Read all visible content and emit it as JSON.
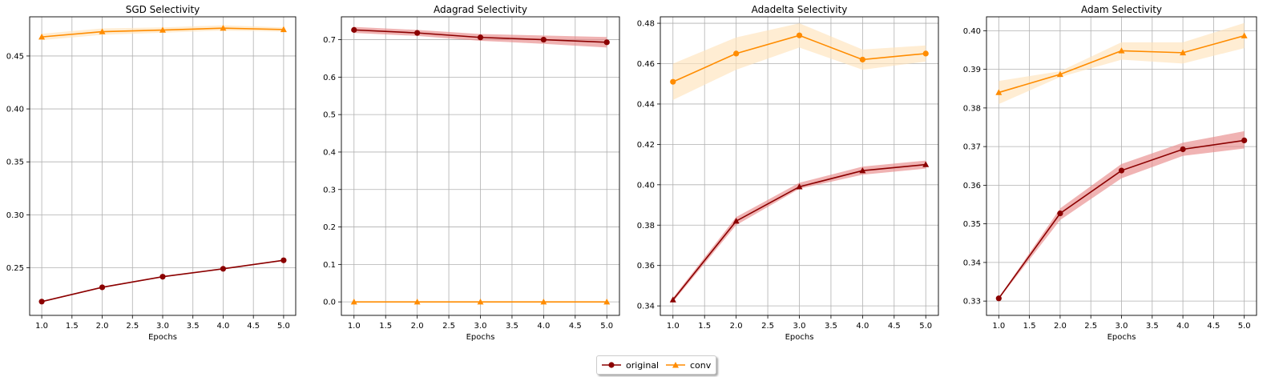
{
  "legend": {
    "entries": [
      {
        "label": "original",
        "color": "#8b0000",
        "marker": "circle"
      },
      {
        "label": "conv",
        "color": "#ff8c00",
        "marker": "triangle"
      }
    ],
    "placement": "bottom-center"
  },
  "chart_data": [
    {
      "type": "line",
      "title": "SGD Selectivity",
      "xlabel": "Epochs",
      "ylabel": "",
      "x": [
        1,
        2,
        3,
        4,
        5
      ],
      "xlim": [
        0.8,
        5.2
      ],
      "ylim": [
        0.205,
        0.487
      ],
      "xticks": [
        "1.0",
        "1.5",
        "2.0",
        "2.5",
        "3.0",
        "3.5",
        "4.0",
        "4.5",
        "5.0"
      ],
      "yticks": [
        "0.25",
        "0.30",
        "0.35",
        "0.40",
        "0.45"
      ],
      "grid": true,
      "series": [
        {
          "name": "original",
          "color": "#8b0000",
          "band_color": "#e88b8b",
          "marker": "circle",
          "values": [
            0.218,
            0.2315,
            0.2415,
            0.249,
            0.257
          ],
          "lower": [
            0.2175,
            0.231,
            0.241,
            0.2485,
            0.2565
          ],
          "upper": [
            0.2185,
            0.232,
            0.242,
            0.2495,
            0.2575
          ]
        },
        {
          "name": "conv",
          "color": "#ff8c00",
          "band_color": "#ffe4bc",
          "marker": "triangle",
          "values": [
            0.468,
            0.473,
            0.4745,
            0.4763,
            0.475
          ],
          "lower": [
            0.465,
            0.47,
            0.472,
            0.474,
            0.473
          ],
          "upper": [
            0.471,
            0.476,
            0.477,
            0.479,
            0.477
          ]
        }
      ]
    },
    {
      "type": "line",
      "title": "Adagrad Selectivity",
      "xlabel": "Epochs",
      "ylabel": "",
      "x": [
        1,
        2,
        3,
        4,
        5
      ],
      "xlim": [
        0.8,
        5.2
      ],
      "ylim": [
        -0.036,
        0.761
      ],
      "xticks": [
        "1.0",
        "1.5",
        "2.0",
        "2.5",
        "3.0",
        "3.5",
        "4.0",
        "4.5",
        "5.0"
      ],
      "yticks": [
        "0.0",
        "0.1",
        "0.2",
        "0.3",
        "0.4",
        "0.5",
        "0.6",
        "0.7"
      ],
      "grid": true,
      "series": [
        {
          "name": "original",
          "color": "#8b0000",
          "band_color": "#e88b8b",
          "marker": "circle",
          "values": [
            0.726,
            0.718,
            0.706,
            0.7,
            0.693
          ],
          "lower": [
            0.718,
            0.71,
            0.697,
            0.689,
            0.679
          ],
          "upper": [
            0.734,
            0.726,
            0.715,
            0.711,
            0.707
          ]
        },
        {
          "name": "conv",
          "color": "#ff8c00",
          "band_color": "#ffe4bc",
          "marker": "triangle",
          "values": [
            0.0,
            0.0,
            0.0,
            0.0,
            0.0
          ],
          "lower": [
            0.0,
            0.0,
            0.0,
            0.0,
            0.0
          ],
          "upper": [
            0.0,
            0.0,
            0.0,
            0.0,
            0.0
          ]
        }
      ]
    },
    {
      "type": "line",
      "title": "Adadelta Selectivity",
      "xlabel": "Epochs",
      "ylabel": "",
      "x": [
        1,
        2,
        3,
        4,
        5
      ],
      "xlim": [
        0.8,
        5.2
      ],
      "ylim": [
        0.3353,
        0.4832
      ],
      "xticks": [
        "1.0",
        "1.5",
        "2.0",
        "2.5",
        "3.0",
        "3.5",
        "4.0",
        "4.5",
        "5.0"
      ],
      "yticks": [
        "0.34",
        "0.36",
        "0.38",
        "0.40",
        "0.42",
        "0.44",
        "0.46",
        "0.48"
      ],
      "grid": true,
      "series": [
        {
          "name": "original",
          "color": "#8b0000",
          "band_color": "#e88b8b",
          "marker": "triangle",
          "values": [
            0.343,
            0.382,
            0.399,
            0.407,
            0.41
          ],
          "lower": [
            0.342,
            0.38,
            0.398,
            0.405,
            0.408
          ],
          "upper": [
            0.344,
            0.384,
            0.401,
            0.409,
            0.412
          ]
        },
        {
          "name": "conv",
          "color": "#ff8c00",
          "band_color": "#ffe4bc",
          "marker": "circle",
          "values": [
            0.451,
            0.465,
            0.474,
            0.462,
            0.465
          ],
          "lower": [
            0.442,
            0.457,
            0.468,
            0.457,
            0.461
          ],
          "upper": [
            0.46,
            0.473,
            0.48,
            0.467,
            0.469
          ]
        }
      ]
    },
    {
      "type": "line",
      "title": "Adam Selectivity",
      "xlabel": "Epochs",
      "ylabel": "",
      "x": [
        1,
        2,
        3,
        4,
        5
      ],
      "xlim": [
        0.8,
        5.2
      ],
      "ylim": [
        0.3263,
        0.4036
      ],
      "xticks": [
        "1.0",
        "1.5",
        "2.0",
        "2.5",
        "3.0",
        "3.5",
        "4.0",
        "4.5",
        "5.0"
      ],
      "yticks": [
        "0.33",
        "0.34",
        "0.35",
        "0.36",
        "0.37",
        "0.38",
        "0.39",
        "0.40"
      ],
      "grid": true,
      "series": [
        {
          "name": "original",
          "color": "#8b0000",
          "band_color": "#e88b8b",
          "marker": "circle",
          "values": [
            0.3307,
            0.3527,
            0.3638,
            0.3693,
            0.3716
          ],
          "lower": [
            0.3305,
            0.351,
            0.3618,
            0.3676,
            0.3695
          ],
          "upper": [
            0.3309,
            0.354,
            0.3655,
            0.371,
            0.374
          ]
        },
        {
          "name": "conv",
          "color": "#ff8c00",
          "band_color": "#ffe4bc",
          "marker": "triangle",
          "values": [
            0.384,
            0.3887,
            0.3948,
            0.3943,
            0.3987
          ],
          "lower": [
            0.381,
            0.388,
            0.3925,
            0.3915,
            0.3955
          ],
          "upper": [
            0.387,
            0.3895,
            0.397,
            0.397,
            0.402
          ]
        }
      ]
    }
  ]
}
